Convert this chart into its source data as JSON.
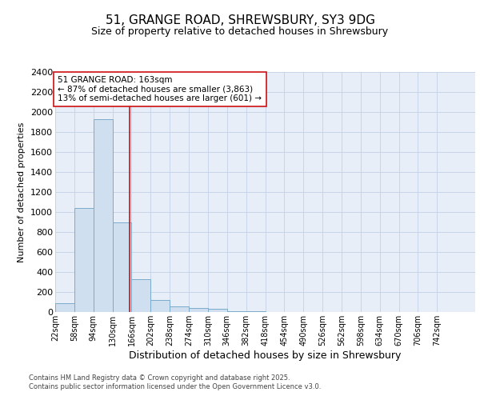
{
  "title1": "51, GRANGE ROAD, SHREWSBURY, SY3 9DG",
  "title2": "Size of property relative to detached houses in Shrewsbury",
  "xlabel": "Distribution of detached houses by size in Shrewsbury",
  "ylabel": "Number of detached properties",
  "bin_labels": [
    "22sqm",
    "58sqm",
    "94sqm",
    "130sqm",
    "166sqm",
    "202sqm",
    "238sqm",
    "274sqm",
    "310sqm",
    "346sqm",
    "382sqm",
    "418sqm",
    "454sqm",
    "490sqm",
    "526sqm",
    "562sqm",
    "598sqm",
    "634sqm",
    "670sqm",
    "706sqm",
    "742sqm"
  ],
  "bin_edges": [
    22,
    58,
    94,
    130,
    166,
    202,
    238,
    274,
    310,
    346,
    382,
    418,
    454,
    490,
    526,
    562,
    598,
    634,
    670,
    706,
    742,
    778
  ],
  "bar_heights": [
    90,
    1040,
    1925,
    895,
    325,
    120,
    55,
    40,
    30,
    10,
    8,
    3,
    2,
    1,
    1,
    1,
    0,
    0,
    0,
    0,
    0
  ],
  "bar_color": "#d0dff0",
  "bar_edge_color": "#7aabcc",
  "vline_x": 163,
  "vline_color": "#cc1111",
  "annotation_text": "51 GRANGE ROAD: 163sqm\n← 87% of detached houses are smaller (3,863)\n13% of semi-detached houses are larger (601) →",
  "annotation_box_edge_color": "#cc1111",
  "grid_color": "#c8d4e8",
  "background_color": "#e8eef8",
  "footnote": "Contains HM Land Registry data © Crown copyright and database right 2025.\nContains public sector information licensed under the Open Government Licence v3.0.",
  "ylim": [
    0,
    2400
  ],
  "yticks": [
    0,
    200,
    400,
    600,
    800,
    1000,
    1200,
    1400,
    1600,
    1800,
    2000,
    2200,
    2400
  ],
  "title1_fontsize": 11,
  "title2_fontsize": 9,
  "xlabel_fontsize": 9,
  "ylabel_fontsize": 8,
  "tick_fontsize": 8,
  "annot_fontsize": 7.5,
  "footnote_fontsize": 6
}
